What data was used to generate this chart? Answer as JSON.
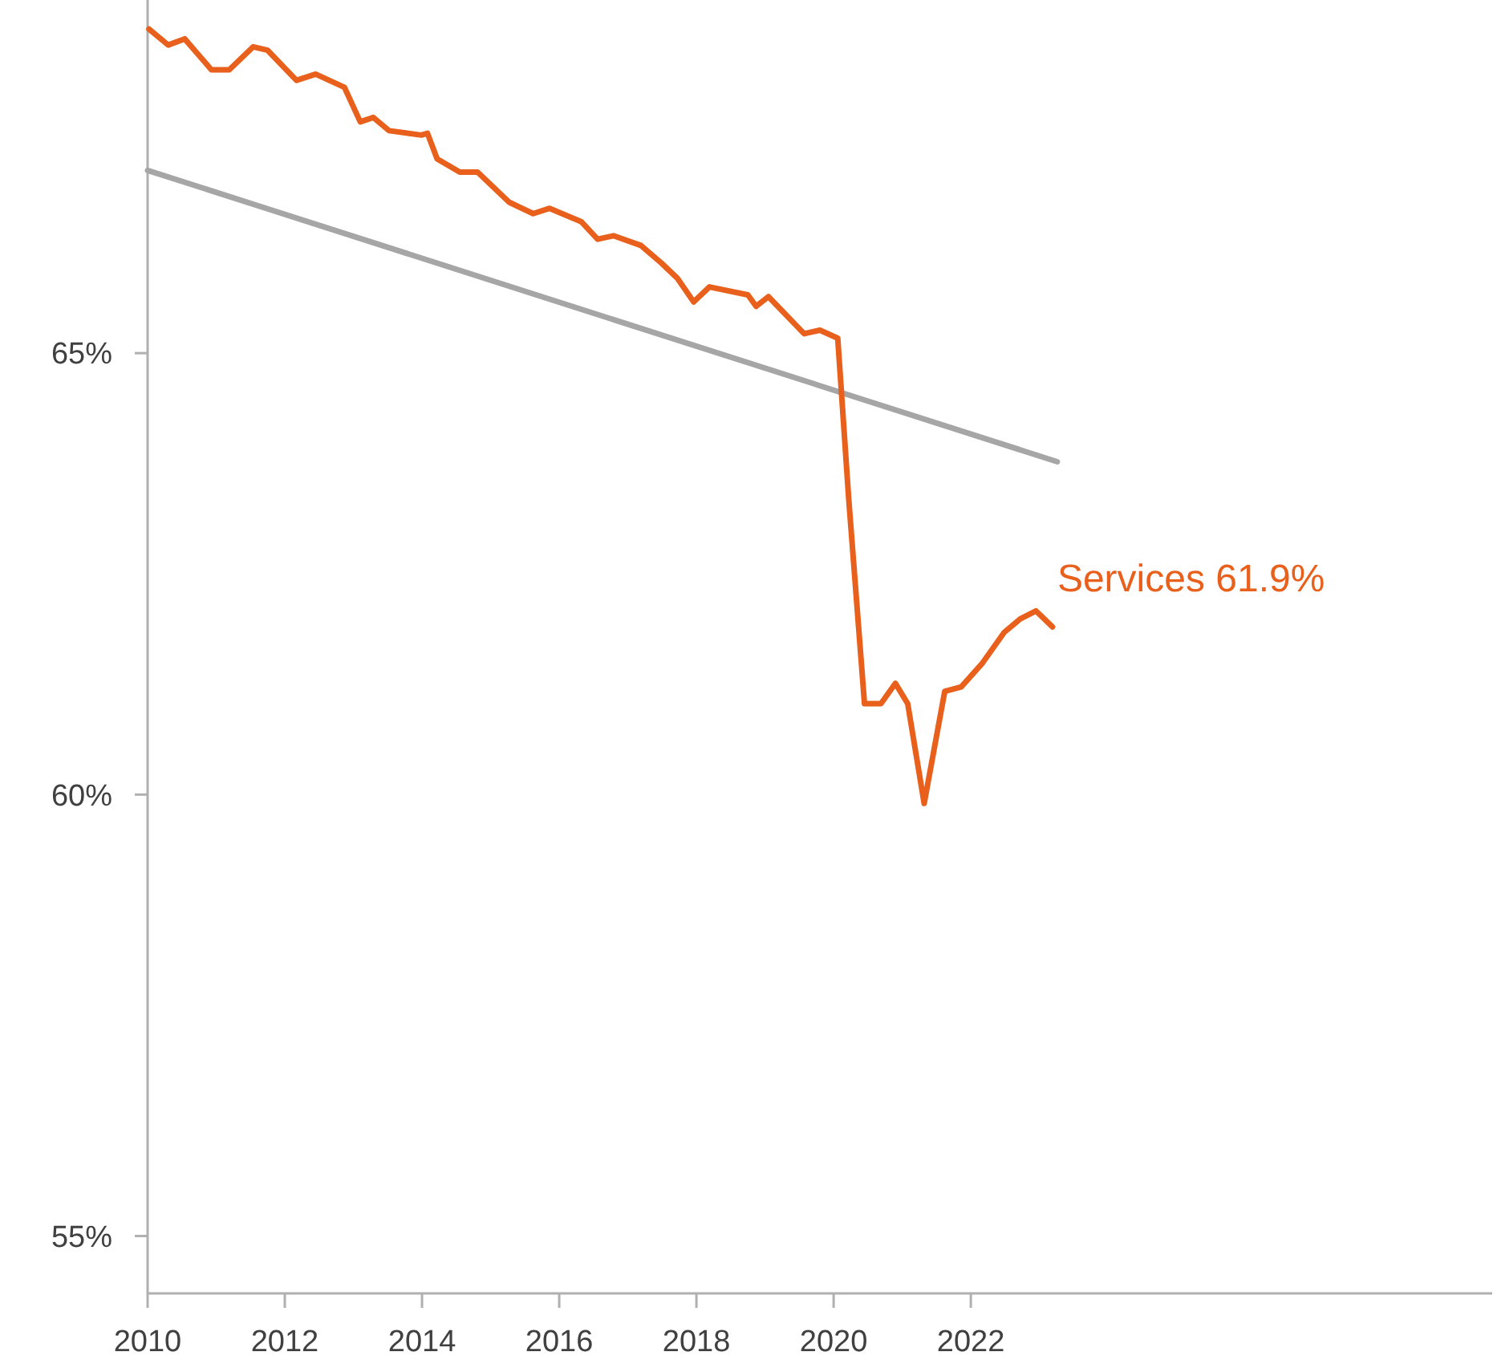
{
  "chart_data": {
    "type": "line",
    "x": [
      2010.02,
      2010.3,
      2010.54,
      2010.93,
      2011.19,
      2011.54,
      2011.75,
      2012.17,
      2012.45,
      2012.87,
      2013.1,
      2013.29,
      2013.52,
      2013.99,
      2014.08,
      2014.22,
      2014.55,
      2014.81,
      2015.27,
      2015.62,
      2015.86,
      2016.32,
      2016.56,
      2016.79,
      2017.19,
      2017.49,
      2017.72,
      2017.96,
      2018.19,
      2018.75,
      2018.87,
      2019.05,
      2019.57,
      2019.8,
      2020.06,
      2020.22,
      2020.45,
      2020.69,
      2020.9,
      2021.08,
      2021.32,
      2021.62,
      2021.86,
      2022.16,
      2022.49,
      2022.72,
      2022.95,
      2023.19
    ],
    "series": [
      {
        "color": "#e8601c",
        "values": [
          68.67,
          68.49,
          68.56,
          68.21,
          68.21,
          68.47,
          68.43,
          68.09,
          68.16,
          68.01,
          67.62,
          67.67,
          67.52,
          67.47,
          67.49,
          67.2,
          67.05,
          67.05,
          66.71,
          66.58,
          66.64,
          66.49,
          66.29,
          66.33,
          66.22,
          66.02,
          65.85,
          65.58,
          65.75,
          65.66,
          65.53,
          65.64,
          65.22,
          65.26,
          65.17,
          63.35,
          61.03,
          61.03,
          61.26,
          61.03,
          59.9,
          61.17,
          61.22,
          61.48,
          61.84,
          61.99,
          62.08,
          61.9
        ]
      },
      {
        "type": "line",
        "color": "#a6a6a6",
        "x": [
          2010,
          2023.26
        ],
        "values": [
          67.07,
          63.77
        ]
      }
    ],
    "xlim": [
      2010,
      2029.6
    ],
    "xticks": [
      2010,
      2012,
      2014,
      2016,
      2018,
      2020,
      2022
    ],
    "ylim": [
      54.35,
      69
    ],
    "yticks": [
      {
        "value": 55,
        "label": "55%"
      },
      {
        "value": 60,
        "label": "60%"
      },
      {
        "value": 65,
        "label": "65%"
      }
    ],
    "annotations": [
      {
        "text": "Services 61.9%",
        "x": 2023.19,
        "y": 61.9
      }
    ]
  }
}
